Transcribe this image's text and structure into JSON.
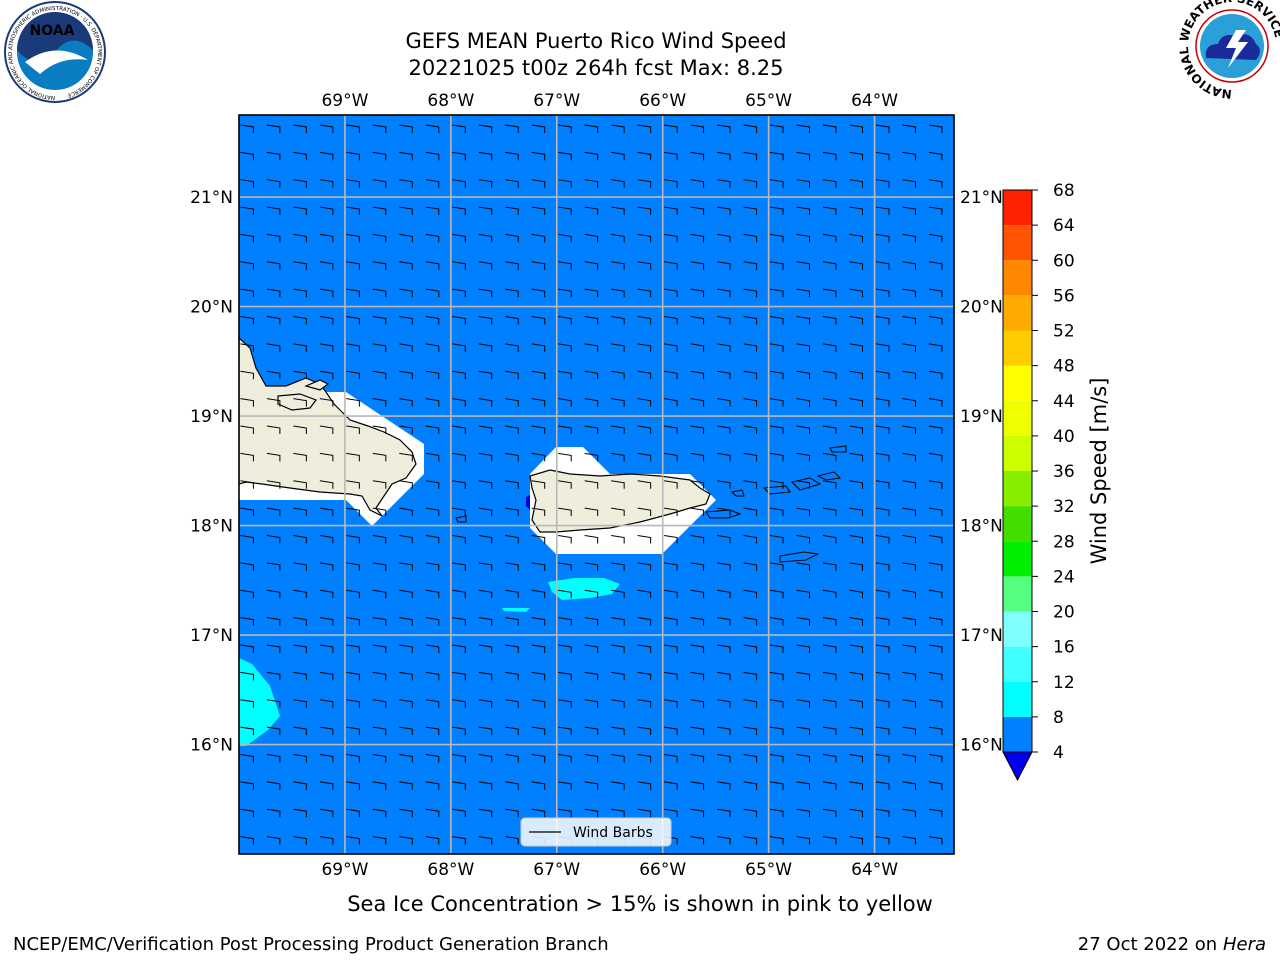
{
  "title": {
    "line1": "GEFS MEAN Puerto Rico Wind Speed",
    "line2": "20221025 t00z 264h fcst   Max: 8.25"
  },
  "map": {
    "lon_min": -70.0,
    "lon_max": -63.25,
    "lat_min": 15.0,
    "lat_max": 21.75,
    "lon_ticks": [
      -69,
      -68,
      -67,
      -66,
      -65,
      -64
    ],
    "lon_labels": [
      "69°W",
      "68°W",
      "67°W",
      "66°W",
      "65°W",
      "64°W"
    ],
    "lat_ticks": [
      16,
      17,
      18,
      19,
      20,
      21
    ],
    "lat_labels": [
      "16°N",
      "17°N",
      "18°N",
      "19°N",
      "20°N",
      "21°N"
    ],
    "ocean_color": "#0080ff",
    "land_color": "#efeedd",
    "grid": true,
    "legend": {
      "label": "Wind Barbs",
      "placement": "bottom-center"
    }
  },
  "colorbar": {
    "label": "Wind Speed [m/s]",
    "levels": [
      4,
      8,
      12,
      16,
      20,
      24,
      28,
      32,
      36,
      40,
      44,
      48,
      52,
      56,
      60,
      64,
      68
    ],
    "colors": [
      "#0080ff",
      "#00ffff",
      "#40ffff",
      "#80ffff",
      "#55ff80",
      "#00ee00",
      "#44dd00",
      "#88ee00",
      "#ccff00",
      "#eeff00",
      "#ffff00",
      "#ffcc00",
      "#ffaa00",
      "#ff8800",
      "#ff5500",
      "#ff2200"
    ],
    "under_color": "#0000ee"
  },
  "chart_data": {
    "type": "heatmap",
    "variable": "Wind Speed",
    "unit": "m/s",
    "max_value": 8.25,
    "regions": [
      {
        "range": "4-8",
        "extent": "most of domain"
      },
      {
        "range": "8-12",
        "extent": "SW corner near 69.5W 16.5N; south of Puerto Rico near 66.6W 17.4N"
      },
      {
        "range": "<4",
        "extent": "small spot near 67.25W 18.2N"
      }
    ],
    "wind_barbs": "northeasterly-to-easterly flow across domain"
  },
  "footer": {
    "note": "Sea Ice Concentration > 15% is shown in pink to yellow",
    "left": "NCEP/EMC/Verification Post Processing Product Generation Branch",
    "date": "27 Oct 2022 on ",
    "machine": "Hera"
  },
  "logos": {
    "left": "noaa-logo",
    "right": "nws-logo",
    "noaa_text": "NOAA",
    "noaa_ring": "NATIONAL OCEANIC AND ATMOSPHERIC ADMINISTRATION · U.S. DEPARTMENT OF COMMERCE",
    "nws_ring": "NATIONAL WEATHER SERVICE"
  }
}
